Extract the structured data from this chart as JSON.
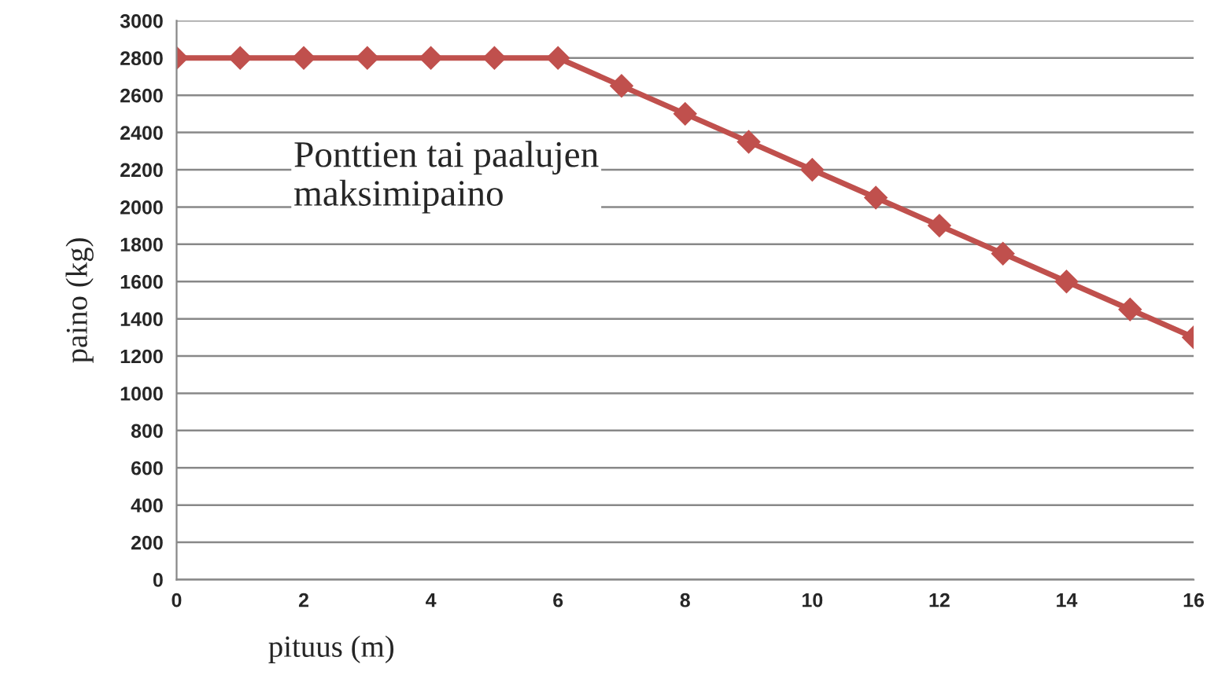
{
  "chart_data": {
    "type": "line",
    "xlabel": "pituus (m)",
    "ylabel": "paino (kg)",
    "annotations": [
      "Ponttien tai paalujen\nmaksimipaino"
    ],
    "x": [
      0,
      1,
      2,
      3,
      4,
      5,
      6,
      7,
      8,
      9,
      10,
      11,
      12,
      13,
      14,
      15,
      16
    ],
    "series": [
      {
        "color": "#c0504d",
        "values": [
          2800,
          2800,
          2800,
          2800,
          2800,
          2800,
          2800,
          2650,
          2500,
          2350,
          2200,
          2050,
          1900,
          1750,
          1600,
          1450,
          1300
        ]
      }
    ],
    "xlim": [
      0,
      16
    ],
    "xticks": [
      0,
      2,
      4,
      6,
      8,
      10,
      12,
      14,
      16
    ],
    "ylim": [
      0,
      3000
    ],
    "yticks": [
      0,
      200,
      400,
      600,
      800,
      1000,
      1200,
      1400,
      1600,
      1800,
      2000,
      2200,
      2400,
      2600,
      2800,
      3000
    ],
    "grid": "y",
    "marker": "diamond",
    "line_style": "solid",
    "legend": false
  }
}
